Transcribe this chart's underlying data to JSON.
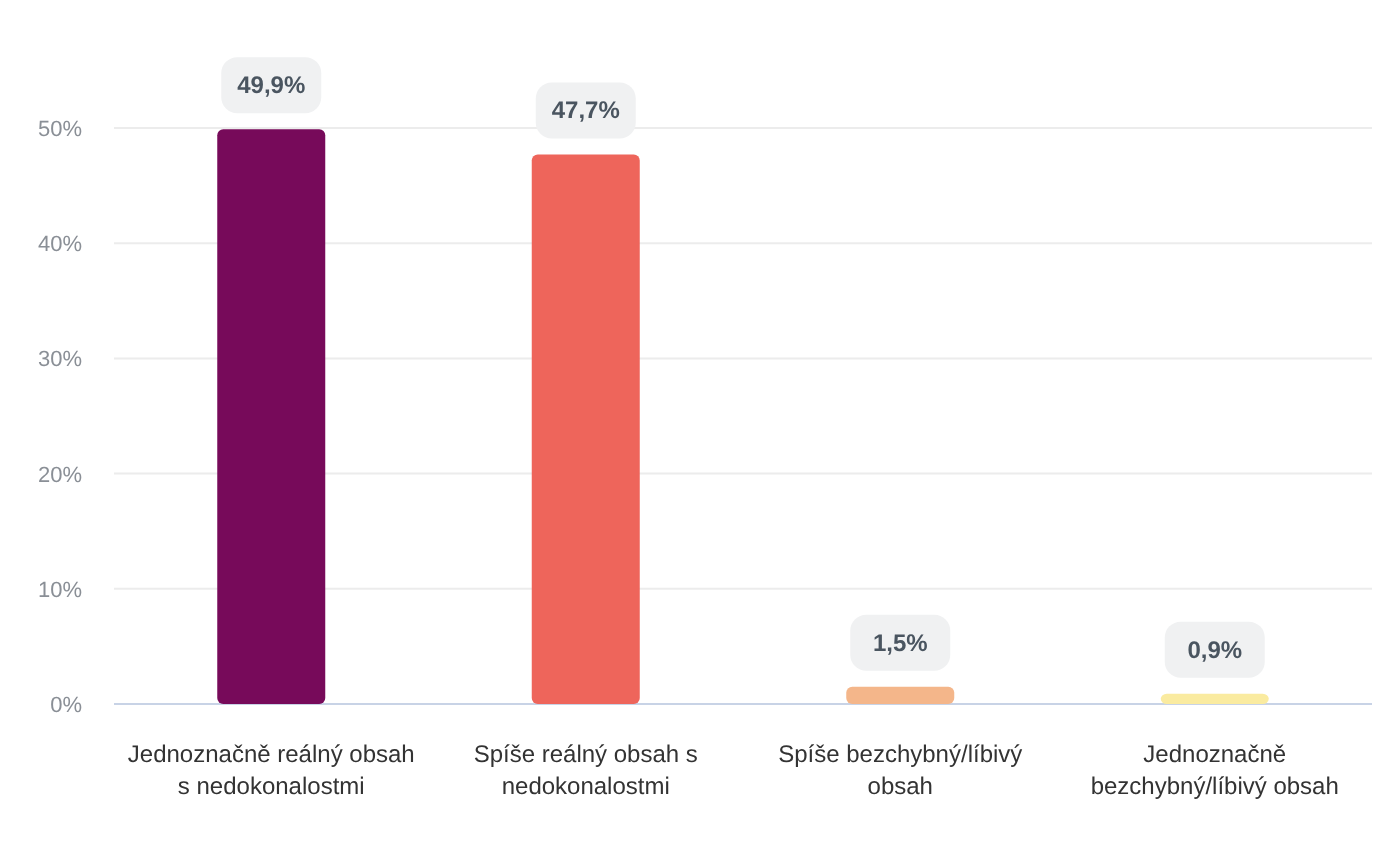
{
  "chart_data": {
    "type": "bar",
    "categories": [
      "Jednoznačně reálný obsah s nedokonalostmi",
      "Spíše reálný obsah s nedokonalostmi",
      "Spíše bezchybný/líbivý obsah",
      "Jednoznačně bezchybný/líbivý obsah"
    ],
    "values": [
      49.9,
      47.7,
      1.5,
      0.9
    ],
    "colors": [
      "#770a5a",
      "#ee655b",
      "#f4b68a",
      "#faeba0"
    ],
    "value_labels": [
      "49,9%",
      "47,7%",
      "1,5%",
      "0,9%"
    ],
    "ylim": [
      0,
      50
    ],
    "yticks": [
      {
        "value": 0,
        "label": "0%"
      },
      {
        "value": 10,
        "label": "10%"
      },
      {
        "value": 20,
        "label": "20%"
      },
      {
        "value": 30,
        "label": "30%"
      },
      {
        "value": 40,
        "label": "40%"
      },
      {
        "value": 50,
        "label": "50%"
      }
    ],
    "grid": "y"
  }
}
